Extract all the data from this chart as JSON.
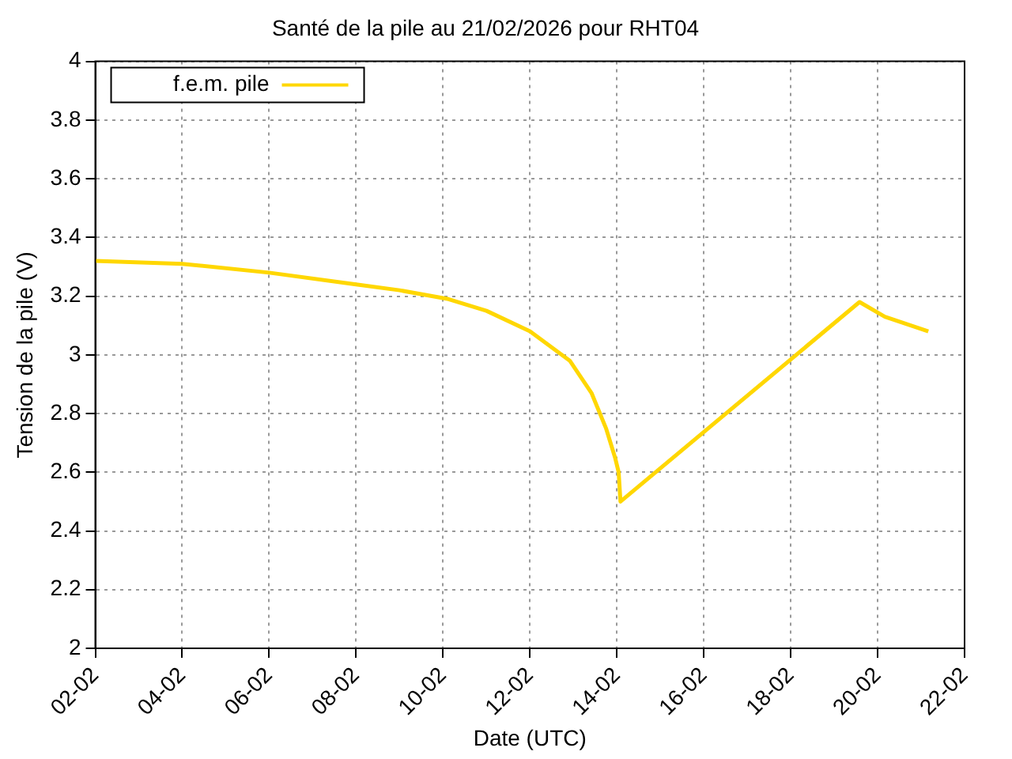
{
  "chart_data": {
    "type": "line",
    "title": "Santé de la pile au 21/02/2026 pour RHT04",
    "xlabel": "Date (UTC)",
    "ylabel": "Tension de la pile (V)",
    "series": [
      {
        "name": "f.e.m. pile",
        "color": "#ffd700",
        "x": [
          "--02-02T00:00",
          "--02-04T00:00",
          "--02-06T00:00",
          "--02-08T00:00",
          "--02-09T00:00",
          "--02-10T03:00",
          "--02-11T00:00",
          "--02-12T00:00",
          "--02-12T22:00",
          "--02-13T10:00",
          "--02-13T18:00",
          "--02-13T23:00",
          "--02-14T01:00",
          "--02-14T02:00",
          "--02-19T14:00",
          "--02-20T04:00",
          "--02-21T04:00"
        ],
        "values": [
          3.32,
          3.31,
          3.28,
          3.24,
          3.22,
          3.19,
          3.15,
          3.08,
          2.98,
          2.87,
          2.75,
          2.65,
          2.6,
          2.5,
          3.18,
          3.13,
          3.08
        ]
      }
    ],
    "xlim": [
      "--02-02",
      "--02-22"
    ],
    "xticks": [
      {
        "value": "--02-02",
        "label": "02-02"
      },
      {
        "value": "--02-04",
        "label": "04-02"
      },
      {
        "value": "--02-06",
        "label": "06-02"
      },
      {
        "value": "--02-08",
        "label": "08-02"
      },
      {
        "value": "--02-10",
        "label": "10-02"
      },
      {
        "value": "--02-12",
        "label": "12-02"
      },
      {
        "value": "--02-14",
        "label": "14-02"
      },
      {
        "value": "--02-16",
        "label": "16-02"
      },
      {
        "value": "--02-18",
        "label": "18-02"
      },
      {
        "value": "--02-20",
        "label": "20-02"
      },
      {
        "value": "--02-22",
        "label": "22-02"
      }
    ],
    "ylim": [
      2,
      4
    ],
    "yticks": [
      2,
      2.2,
      2.4,
      2.6,
      2.8,
      3,
      3.2,
      3.4,
      3.6,
      3.8,
      4
    ],
    "grid": true,
    "legend": "top left",
    "marker": "none",
    "line_style": "solid"
  }
}
